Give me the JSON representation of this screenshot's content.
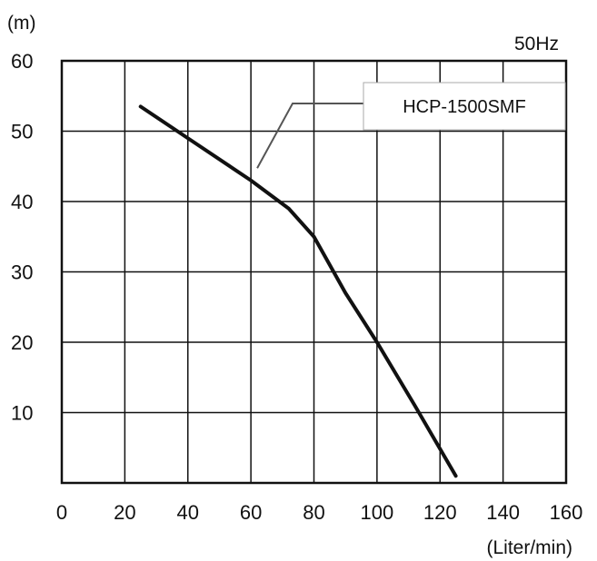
{
  "chart_data": {
    "type": "line",
    "title": "",
    "frequency_label": "50Hz",
    "ylabel": "(m)",
    "xlabel": "(Liter/min)",
    "xlim": [
      0,
      160
    ],
    "ylim": [
      0,
      60
    ],
    "xticks": [
      0,
      20,
      40,
      60,
      80,
      100,
      120,
      140,
      160
    ],
    "yticks": [
      10,
      20,
      30,
      40,
      50,
      60
    ],
    "grid": true,
    "legend_position": "top-right",
    "colors": {
      "line": "#111111",
      "grid": "#111111",
      "leader": "#555555"
    },
    "series": [
      {
        "name": "HCP-1500SMF",
        "x": [
          25,
          40,
          60,
          72,
          80,
          90,
          100,
          112,
          125
        ],
        "y": [
          53.5,
          49,
          43,
          39,
          35,
          27,
          20,
          11,
          1
        ]
      }
    ],
    "annotation": {
      "label": "HCP-1500SMF",
      "points_to": {
        "x": 62,
        "y": 45
      }
    }
  }
}
